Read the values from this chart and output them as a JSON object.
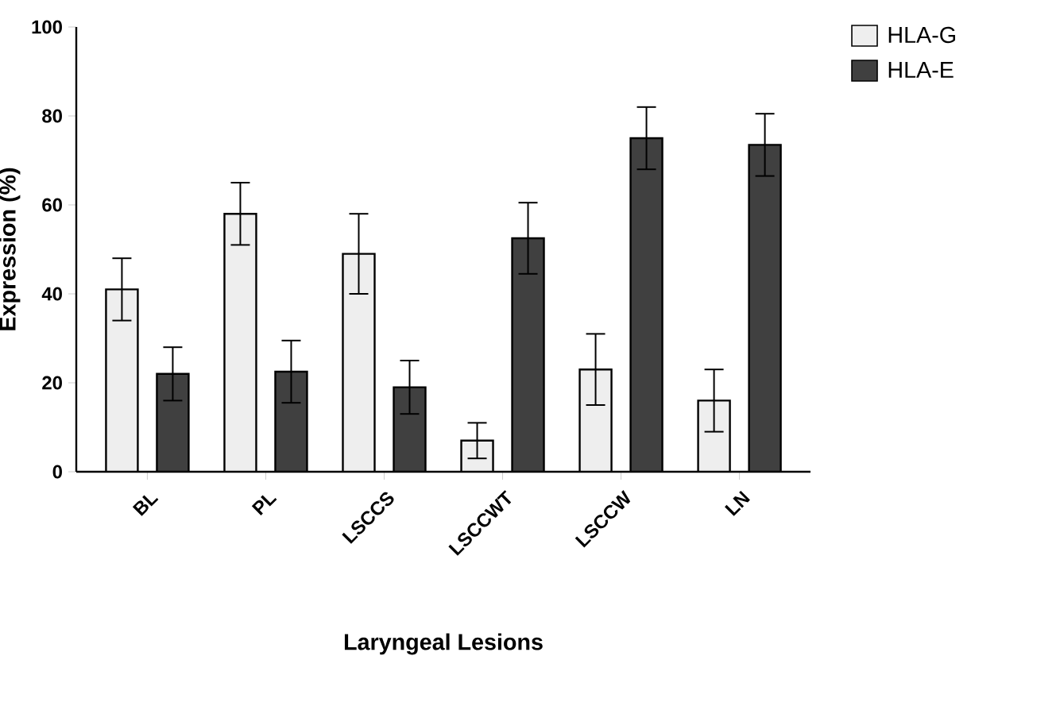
{
  "chart_data": {
    "type": "bar",
    "xlabel": "Laryngeal Lesions",
    "ylabel": "Expression (%)",
    "categories": [
      "BL",
      "PL",
      "LSCCS",
      "LSCCWT",
      "LSCCW",
      "LN"
    ],
    "series": [
      {
        "name": "HLA-G",
        "color": "#eeeeee",
        "values": [
          41,
          58,
          49,
          7,
          23,
          16
        ],
        "errors": [
          7,
          7,
          9,
          4,
          8,
          7
        ]
      },
      {
        "name": "HLA-E",
        "color": "#404040",
        "values": [
          22,
          22.5,
          19,
          52.5,
          75,
          73.5
        ],
        "errors": [
          6,
          7,
          6,
          8,
          7,
          7
        ]
      }
    ],
    "ylim": [
      0,
      100
    ],
    "yticks": [
      0,
      20,
      40,
      60,
      80,
      100
    ],
    "legend": "top right",
    "grid": false
  }
}
